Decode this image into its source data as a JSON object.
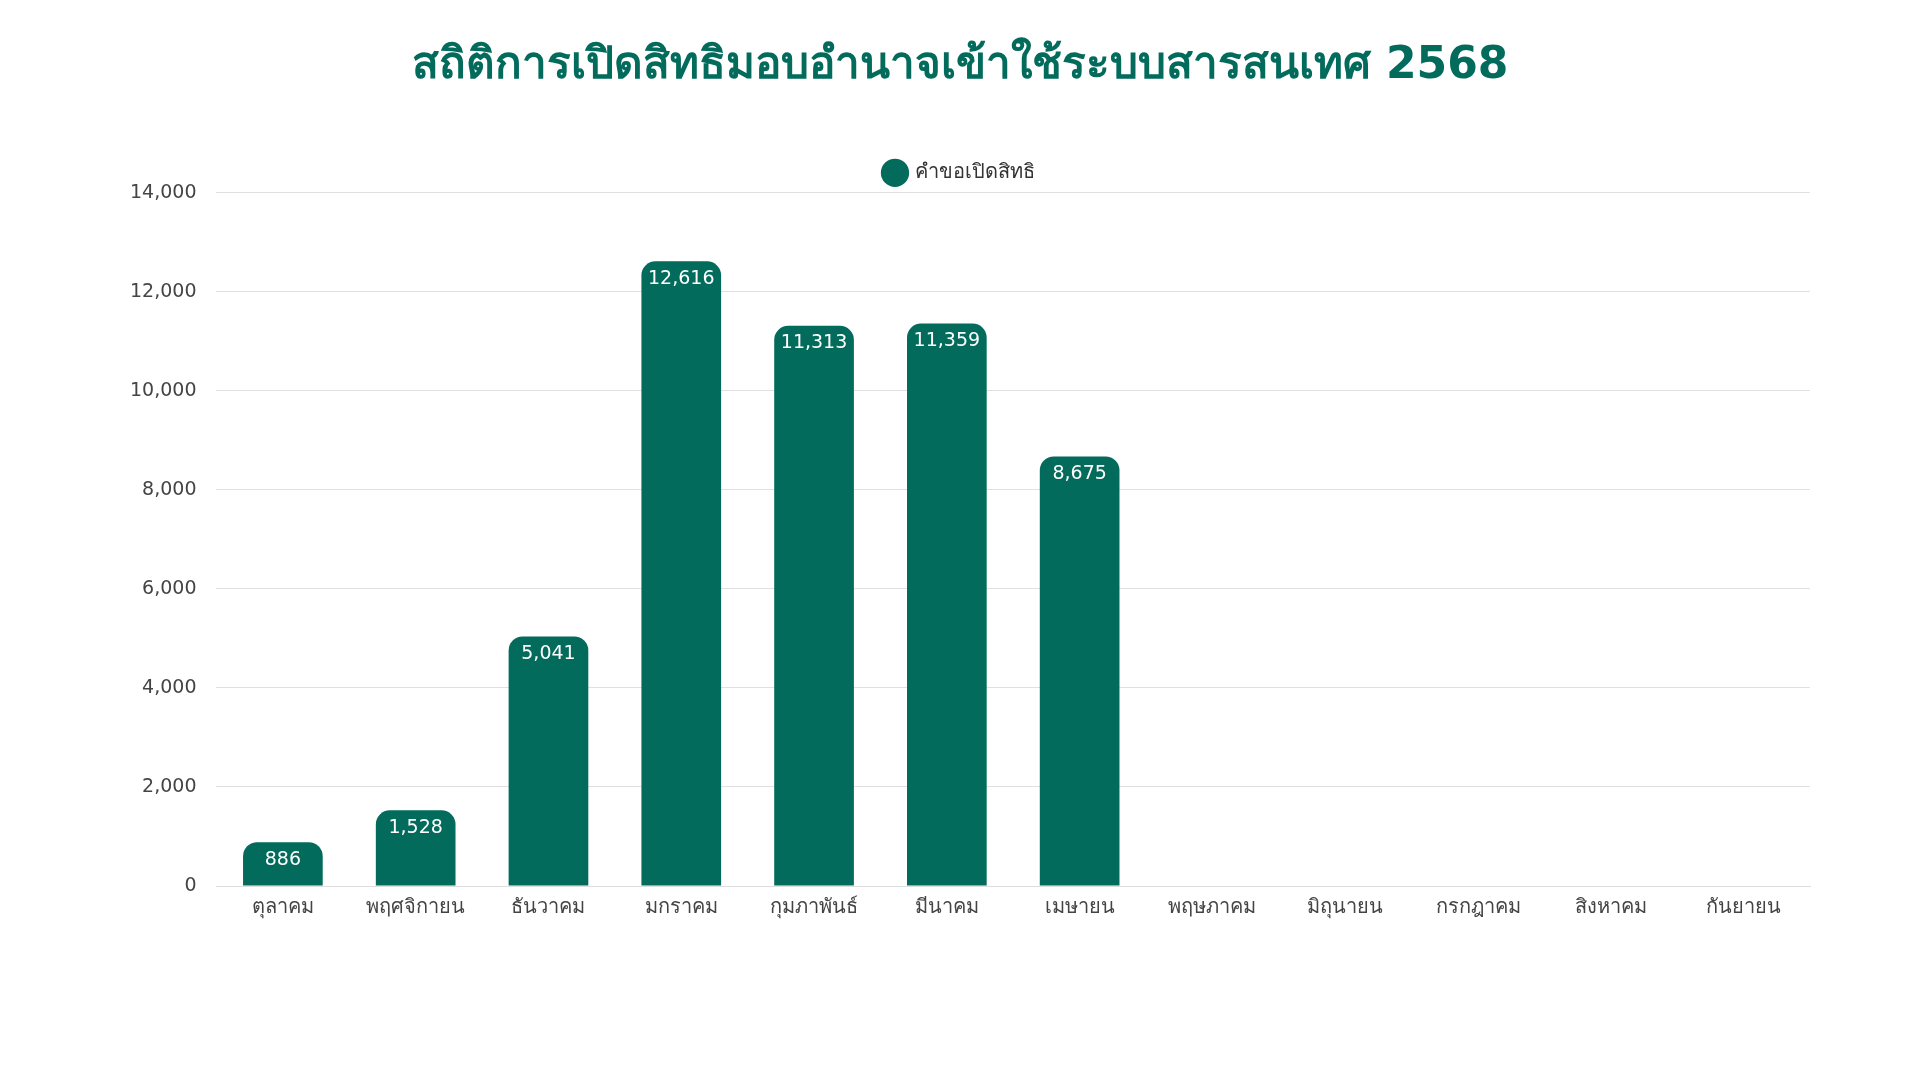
{
  "chart_data": {
    "type": "bar",
    "title": "สถิติการเปิดสิทธิมอบอำนาจเข้าใช้ระบบสารสนเทศ 2568",
    "categories": [
      "ตุลาคม",
      "พฤศจิกายน",
      "ธันวาคม",
      "มกราคม",
      "กุมภาพันธ์",
      "มีนาคม",
      "เมษายน",
      "พฤษภาคม",
      "มิถุนายน",
      "กรกฎาคม",
      "สิงหาคม",
      "กันยายน"
    ],
    "series": [
      {
        "name": "คำขอเปิดสิทธิ",
        "color": "#026b5c",
        "values": [
          886,
          1528,
          5041,
          12616,
          11313,
          11359,
          8675,
          null,
          null,
          null,
          null,
          null
        ],
        "value_labels": [
          "886",
          "1,528",
          "5,041",
          "12,616",
          "11,313",
          "11,359",
          "8,675",
          null,
          null,
          null,
          null,
          null
        ]
      }
    ],
    "ylim": [
      0,
      14000
    ],
    "yticks": [
      0,
      {
        "value": 2000,
        "label": "2,000"
      },
      {
        "value": 4000,
        "label": "4,000"
      },
      {
        "value": 6000,
        "label": "6,000"
      },
      {
        "value": 8000,
        "label": "8,000"
      },
      {
        "value": 10000,
        "label": "10,000"
      },
      {
        "value": 12000,
        "label": "12,000"
      },
      {
        "value": 14000,
        "label": "14,000"
      }
    ],
    "grid": "y",
    "legend": "top"
  }
}
